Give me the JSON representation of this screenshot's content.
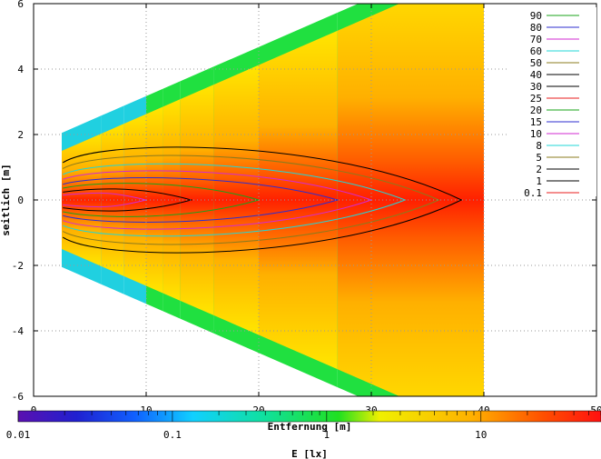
{
  "chart_data": {
    "type": "heatmap",
    "title": "",
    "xlabel": "Entfernung [m]",
    "ylabel": "seitlich [m]",
    "xlim": [
      0,
      50
    ],
    "ylim": [
      -6,
      6
    ],
    "x_ticks": [
      "0",
      "10",
      "20",
      "30",
      "40",
      "50"
    ],
    "y_ticks": [
      "-6",
      "-4",
      "-2",
      "0",
      "2",
      "4",
      "6"
    ],
    "grid": true,
    "colorbar": {
      "label": "E [lx]",
      "scale": "log",
      "range": [
        0.01,
        60
      ],
      "ticks": [
        "0.01",
        "0.1",
        "1",
        "10"
      ]
    },
    "legend": {
      "position": "top-right",
      "title": "",
      "entries": [
        {
          "label": "90",
          "color": "#1aa31a"
        },
        {
          "label": "80",
          "color": "#2e2ecf"
        },
        {
          "label": "70",
          "color": "#d22ad2"
        },
        {
          "label": "60",
          "color": "#20d7d7"
        },
        {
          "label": "50",
          "color": "#8b7b1d"
        },
        {
          "label": "40",
          "color": "#000000"
        },
        {
          "label": "30",
          "color": "#000000"
        },
        {
          "label": "25",
          "color": "#e81e1e"
        },
        {
          "label": "20",
          "color": "#1aa31a"
        },
        {
          "label": "15",
          "color": "#2e2ecf"
        },
        {
          "label": "10",
          "color": "#d22ad2"
        },
        {
          "label": "8",
          "color": "#20d7d7"
        },
        {
          "label": "5",
          "color": "#8b7b1d"
        },
        {
          "label": "2",
          "color": "#000000"
        },
        {
          "label": "1",
          "color": "#000000"
        },
        {
          "label": "0.1",
          "color": "#e81e1e"
        }
      ]
    },
    "illuminated_area": {
      "x_start": 2.5,
      "x_end": 40,
      "strip_boundaries": [
        2.5,
        6,
        8,
        10,
        11.5,
        13,
        16,
        20,
        27,
        40
      ]
    }
  }
}
